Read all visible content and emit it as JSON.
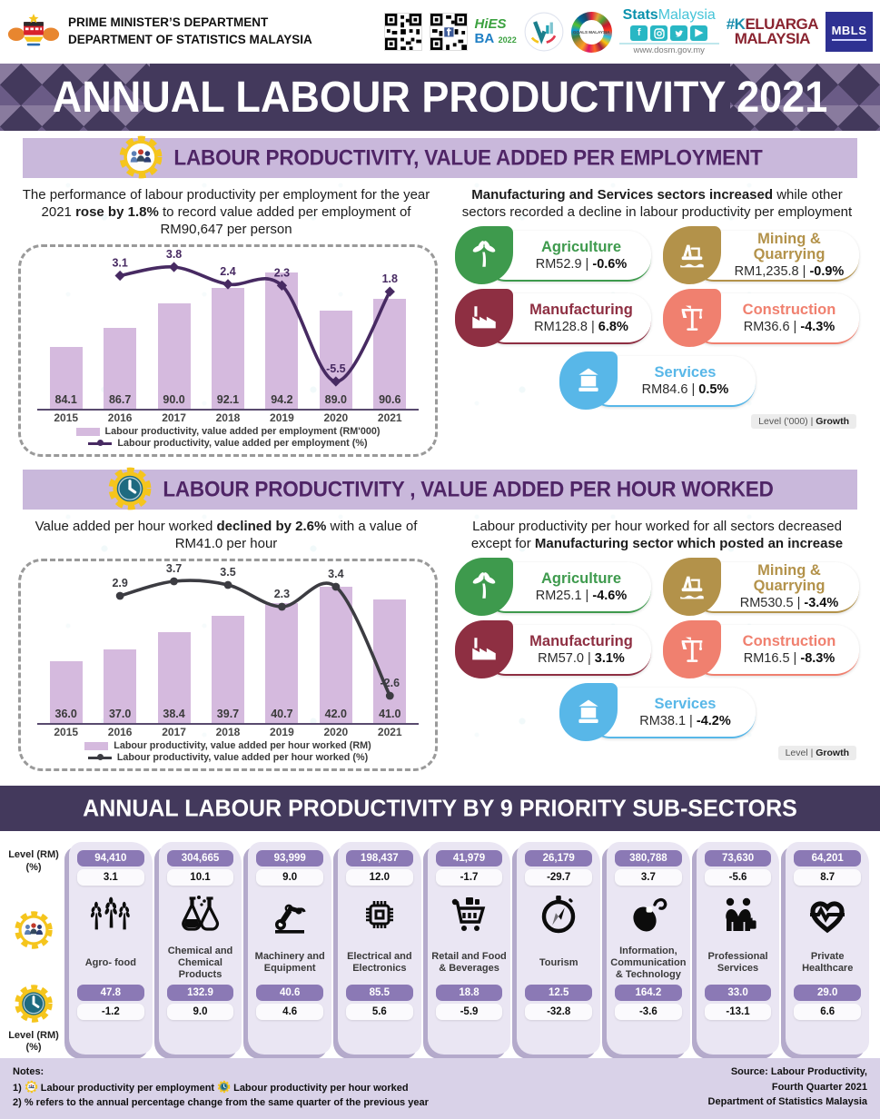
{
  "title": "ANNUAL LABOUR PRODUCTIVITY 2021",
  "header": {
    "dept_line1": "PRIME MINISTER’S DEPARTMENT",
    "dept_line2": "DEPARTMENT OF STATISTICS MALAYSIA",
    "logos": {
      "hies_line1": "HiES",
      "hies_line2": "BA",
      "hies_year": "2022",
      "stats_bold": "Stats",
      "stats_light": "Malaysia",
      "stats_url": "www.dosm.gov.my",
      "social_icons": [
        "facebook",
        "instagram",
        "twitter",
        "youtube"
      ],
      "sdg_center": "GOALS MALAYSIA",
      "keluarga_line1": "#KELUARGA",
      "keluarga_line2": "MALAYSIA",
      "mbls": "MBLS"
    }
  },
  "section_employment": {
    "heading": "LABOUR PRODUCTIVITY, VALUE ADDED PER EMPLOYMENT",
    "intro_pre": "The performance of labour productivity per employment for the year 2021 ",
    "intro_bold": "rose by 1.8%",
    "intro_post": " to record value added per employment of RM90,647 per person",
    "right_bold": "Manufacturing and Services sectors increased",
    "right_rest": " while other sectors recorded a decline in labour productivity per employment",
    "sectors": [
      {
        "name": "Agriculture",
        "level": "RM52.9",
        "growth": "-0.6%",
        "color": "#3e9a4d",
        "icon": "palm-tree"
      },
      {
        "name": "Mining & Quarrying",
        "level": "RM1,235.8",
        "growth": "-0.9%",
        "color": "#b3924a",
        "icon": "oil-rig"
      },
      {
        "name": "Manufacturing",
        "level": "RM128.8",
        "growth": "6.8%",
        "color": "#8e2f42",
        "icon": "factory"
      },
      {
        "name": "Construction",
        "level": "RM36.6",
        "growth": "-4.3%",
        "color": "#f0806f",
        "icon": "crane"
      },
      {
        "name": "Services",
        "level": "RM84.6",
        "growth": "0.5%",
        "color": "#58b7e8",
        "icon": "bank"
      }
    ],
    "level_note_plain": "Level ('000) | ",
    "level_note_bold": "Growth"
  },
  "section_hour": {
    "heading": "LABOUR PRODUCTIVITY , VALUE ADDED PER HOUR WORKED",
    "intro_pre": "Value added per hour worked ",
    "intro_bold": "declined by 2.6%",
    "intro_post": " with a value of RM41.0 per hour",
    "right_pre": "Labour productivity per hour worked for all sectors decreased except for ",
    "right_bold": "Manufacturing sector which posted an increase",
    "sectors": [
      {
        "name": "Agriculture",
        "level": "RM25.1",
        "growth": "-4.6%",
        "color": "#3e9a4d",
        "icon": "palm-tree"
      },
      {
        "name": "Mining & Quarrying",
        "level": "RM530.5",
        "growth": "-3.4%",
        "color": "#b3924a",
        "icon": "oil-rig"
      },
      {
        "name": "Manufacturing",
        "level": "RM57.0",
        "growth": "3.1%",
        "color": "#8e2f42",
        "icon": "factory"
      },
      {
        "name": "Construction",
        "level": "RM16.5",
        "growth": "-8.3%",
        "color": "#f0806f",
        "icon": "crane"
      },
      {
        "name": "Services",
        "level": "RM38.1",
        "growth": "-4.2%",
        "color": "#58b7e8",
        "icon": "bank"
      }
    ],
    "level_note_plain": "Level | ",
    "level_note_bold": "Growth"
  },
  "chart_data": [
    {
      "id": "employment",
      "type": "combo",
      "categories": [
        "2015",
        "2016",
        "2017",
        "2018",
        "2019",
        "2020",
        "2021"
      ],
      "series": [
        {
          "name": "Labour productivity, value added per employment (RM'000)",
          "type": "bar",
          "values": [
            84.1,
            86.7,
            90.0,
            92.1,
            94.2,
            89.0,
            90.6
          ]
        },
        {
          "name": "Labour productivity, value added per employment (%)",
          "type": "line",
          "values": [
            null,
            3.1,
            3.8,
            2.4,
            2.3,
            -5.5,
            1.8
          ]
        }
      ],
      "marker": "diamond",
      "bar_color": "#d5bade",
      "line_color": "#472a62",
      "legend_position": "bottom",
      "grid": false
    },
    {
      "id": "hour",
      "type": "combo",
      "categories": [
        "2015",
        "2016",
        "2017",
        "2018",
        "2019",
        "2020",
        "2021"
      ],
      "series": [
        {
          "name": "Labour productivity, value added per hour worked (RM)",
          "type": "bar",
          "values": [
            36.0,
            37.0,
            38.4,
            39.7,
            40.7,
            42.0,
            41.0
          ]
        },
        {
          "name": "Labour productivity, value added per hour worked (%)",
          "type": "line",
          "values": [
            null,
            2.9,
            3.7,
            3.5,
            2.3,
            3.4,
            -2.6
          ]
        }
      ],
      "marker": "circle",
      "bar_color": "#d5bade",
      "line_color": "#3c3c42",
      "legend_position": "bottom",
      "grid": false
    }
  ],
  "section_subsectors": {
    "heading": "ANNUAL LABOUR PRODUCTIVITY BY 9 PRIORITY SUB-SECTORS",
    "axis_top_label1": "Level (RM)",
    "axis_top_label2": "(%)",
    "axis_bottom_label1": "Level (RM)",
    "axis_bottom_label2": "(%)",
    "cards": [
      {
        "name": "Agro- food",
        "icon": "wheat",
        "emp_level": "94,410",
        "emp_growth": "3.1",
        "hour_level": "47.8",
        "hour_growth": "-1.2"
      },
      {
        "name": "Chemical and Chemical Products",
        "icon": "flasks",
        "emp_level": "304,665",
        "emp_growth": "10.1",
        "hour_level": "132.9",
        "hour_growth": "9.0"
      },
      {
        "name": "Machinery and Equipment",
        "icon": "robot-arm",
        "emp_level": "93,999",
        "emp_growth": "9.0",
        "hour_level": "40.6",
        "hour_growth": "4.6"
      },
      {
        "name": "Electrical and Electronics",
        "icon": "chip",
        "emp_level": "198,437",
        "emp_growth": "12.0",
        "hour_level": "85.5",
        "hour_growth": "5.6"
      },
      {
        "name": "Retail and Food & Beverages",
        "icon": "cart",
        "emp_level": "41,979",
        "emp_growth": "-1.7",
        "hour_level": "18.8",
        "hour_growth": "-5.9"
      },
      {
        "name": "Tourism",
        "icon": "compass",
        "emp_level": "26,179",
        "emp_growth": "-29.7",
        "hour_level": "12.5",
        "hour_growth": "-32.8"
      },
      {
        "name": "Information, Communication & Technology",
        "icon": "mouse",
        "emp_level": "380,788",
        "emp_growth": "3.7",
        "hour_level": "164.2",
        "hour_growth": "-3.6"
      },
      {
        "name": "Professional Services",
        "icon": "handshake",
        "emp_level": "73,630",
        "emp_growth": "-5.6",
        "hour_level": "33.0",
        "hour_growth": "-13.1"
      },
      {
        "name": "Private Healthcare",
        "icon": "heart-pulse",
        "emp_level": "64,201",
        "emp_growth": "8.7",
        "hour_level": "29.0",
        "hour_growth": "6.6"
      }
    ]
  },
  "footer": {
    "notes_title": "Notes:",
    "note1_no": "1)",
    "note1_a": "Labour productivity per employment",
    "note1_b": "Labour productivity per hour worked",
    "note2": "2) % refers to the annual percentage change from the same quarter of the previous year",
    "source_line1": "Source: Labour Productivity,",
    "source_line2": "Fourth Quarter 2021",
    "source_line3": "Department of Statistics Malaysia"
  },
  "colors": {
    "banner": "#43395c",
    "section_bar": "#c9b8db",
    "section_title": "#4f2566",
    "bar_fill": "#d5bade",
    "pill_purple": "#8b79b5",
    "card_bg": "#eae6f3",
    "card_shadow": "#b4aacb",
    "footer_bg": "#d9d2e8",
    "gear_yellow": "#f5c51d"
  }
}
